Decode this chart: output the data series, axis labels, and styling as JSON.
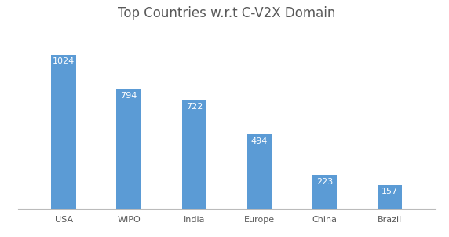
{
  "title": "Top Countries w.r.t C-V2X Domain",
  "categories": [
    "USA",
    "WIPO",
    "India",
    "Europe",
    "China",
    "Brazil"
  ],
  "values": [
    1024,
    794,
    722,
    494,
    223,
    157
  ],
  "bar_color": "#5B9BD5",
  "label_color": "#FFFFFF",
  "label_fontsize": 8,
  "title_fontsize": 12,
  "title_color": "#595959",
  "background_color": "#FFFFFF",
  "ylim": [
    0,
    1200
  ],
  "bar_width": 0.38,
  "tick_fontsize": 8,
  "tick_color": "#595959"
}
